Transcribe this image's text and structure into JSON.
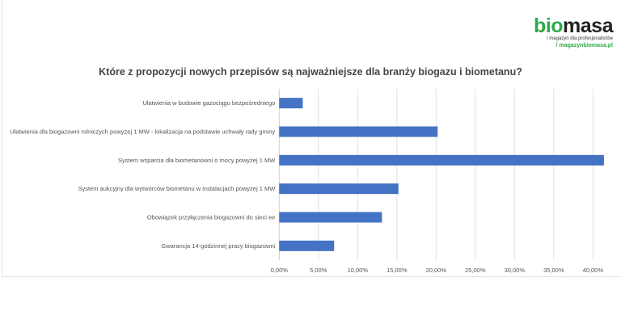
{
  "logo": {
    "brand_part1": "bio",
    "brand_part2": "masa",
    "tagline": "/ magazyn dla profesjonalistów",
    "url": "/ magazynbiomasa.pl"
  },
  "chart_data": {
    "type": "bar",
    "orientation": "horizontal",
    "title": "Które z propozycji nowych przepisów są najważniejsze dla branży biogazu i biometanu?",
    "categories": [
      "Ułatwienia w budowie gazociągu bezpośredniego",
      "Ułatwienia dla biogazowni rolniczych powyżej 1 MW - lokalizacja na podstawie uchwały rady gminy",
      "System wsparcia dla biometanowni o mocy powyżej 1 MW",
      "System aukcyjny dla wytwórców biometanu w instalacjach powyżej 1 MW",
      "Obowiązek przyłączenia biogazowni  do sieci ee",
      "Gwarancja 14-godzinnej pracy biogazowni"
    ],
    "values": [
      3.0,
      20.2,
      41.4,
      15.2,
      13.1,
      7.0
    ],
    "xlim": [
      0,
      40
    ],
    "xticks": [
      "0,00%",
      "5,00%",
      "10,00%",
      "15,00%",
      "20,00%",
      "25,00%",
      "30,00%",
      "35,00%",
      "40,00%"
    ],
    "grid": true,
    "bar_color": "#4472c4"
  }
}
